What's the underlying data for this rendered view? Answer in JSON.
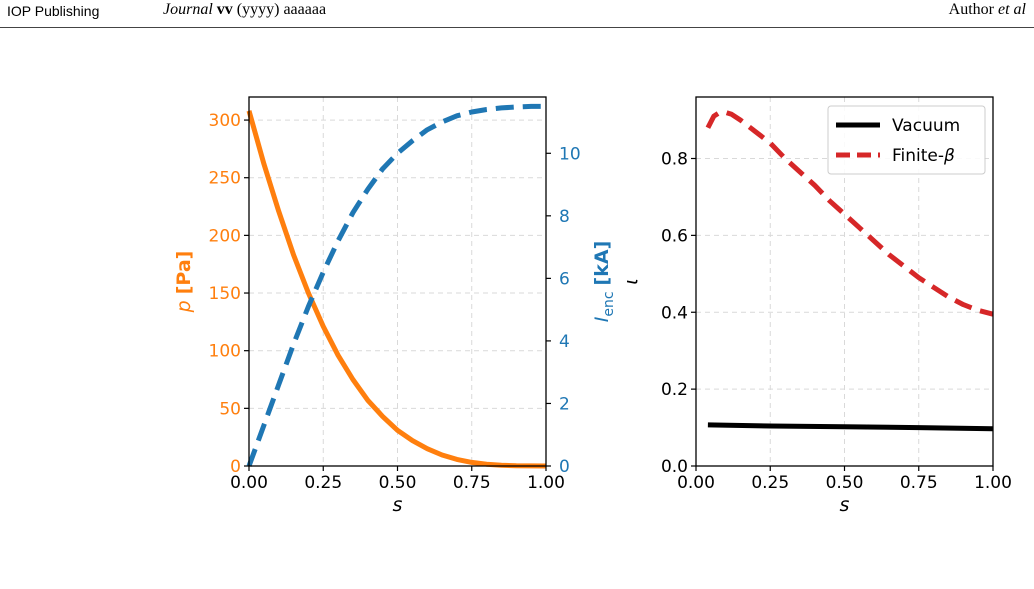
{
  "header": {
    "publisher": "IOP Publishing",
    "journal_name": "Journal",
    "journal_volume": "vv",
    "journal_rest": "(yyyy) aaaaaa",
    "author": "Author",
    "et_al": "et al"
  },
  "colors": {
    "orange": "#ff7f0e",
    "blue": "#1f77b4",
    "red": "#d62728",
    "black": "#000000",
    "grid": "#d9d9d9"
  },
  "chart_data": [
    {
      "type": "line",
      "xlabel": "s",
      "ylabel_left": {
        "symbol": "p",
        "unit": "[Pa]"
      },
      "ylabel_right": {
        "symbol": "I",
        "sub": "enc",
        "unit": "[kA]"
      },
      "xlim": [
        0,
        1
      ],
      "ylim_left": [
        0,
        320
      ],
      "ylim_right": [
        0,
        11.8
      ],
      "xticks": [
        "0.00",
        "0.25",
        "0.50",
        "0.75",
        "1.00"
      ],
      "xtick_values": [
        0,
        0.25,
        0.5,
        0.75,
        1.0
      ],
      "yticks_left": [
        "0",
        "50",
        "100",
        "150",
        "200",
        "250",
        "300"
      ],
      "ytick_values_left": [
        0,
        50,
        100,
        150,
        200,
        250,
        300
      ],
      "yticks_right": [
        "0",
        "2",
        "4",
        "6",
        "8",
        "10"
      ],
      "ytick_values_right": [
        0,
        2,
        4,
        6,
        8,
        10
      ],
      "grid": true,
      "series": [
        {
          "axis": "left",
          "style": "solid",
          "color": "#ff7f0e",
          "x": [
            0,
            0.05,
            0.1,
            0.15,
            0.2,
            0.25,
            0.3,
            0.35,
            0.4,
            0.45,
            0.5,
            0.55,
            0.6,
            0.65,
            0.7,
            0.75,
            0.8,
            0.85,
            0.9,
            0.95,
            1.0
          ],
          "y": [
            308,
            262,
            221,
            183,
            150,
            121,
            96,
            75,
            57,
            43,
            31,
            22,
            15,
            9.5,
            5.7,
            3.1,
            1.6,
            0.7,
            0.2,
            0.05,
            0
          ]
        },
        {
          "axis": "right",
          "style": "dashed",
          "color": "#1f77b4",
          "x": [
            0,
            0.05,
            0.1,
            0.15,
            0.2,
            0.25,
            0.3,
            0.35,
            0.4,
            0.45,
            0.5,
            0.55,
            0.6,
            0.65,
            0.7,
            0.75,
            0.8,
            0.85,
            0.9,
            0.95,
            1.0
          ],
          "y": [
            0,
            1.3,
            2.6,
            3.9,
            5.1,
            6.2,
            7.2,
            8.1,
            8.85,
            9.5,
            10.0,
            10.4,
            10.75,
            11.0,
            11.2,
            11.32,
            11.4,
            11.45,
            11.48,
            11.5,
            11.5
          ]
        }
      ]
    },
    {
      "type": "line",
      "xlabel": "s",
      "ylabel": "ι",
      "xlim": [
        0,
        1
      ],
      "ylim": [
        0,
        0.96
      ],
      "xticks": [
        "0.00",
        "0.25",
        "0.50",
        "0.75",
        "1.00"
      ],
      "xtick_values": [
        0,
        0.25,
        0.5,
        0.75,
        1.0
      ],
      "yticks": [
        "0.0",
        "0.2",
        "0.4",
        "0.6",
        "0.8"
      ],
      "ytick_values": [
        0,
        0.2,
        0.4,
        0.6,
        0.8
      ],
      "grid": true,
      "legend_position": "top-right",
      "series": [
        {
          "name": "Vacuum",
          "style": "solid",
          "color": "#000000",
          "x": [
            0.04,
            0.25,
            0.5,
            0.75,
            1.0
          ],
          "y": [
            0.107,
            0.104,
            0.102,
            0.1,
            0.097
          ]
        },
        {
          "name": "Finite-β",
          "style": "dashed",
          "color": "#d62728",
          "x": [
            0.04,
            0.06,
            0.08,
            0.1,
            0.12,
            0.15,
            0.2,
            0.25,
            0.3,
            0.35,
            0.4,
            0.45,
            0.5,
            0.55,
            0.6,
            0.65,
            0.7,
            0.75,
            0.8,
            0.85,
            0.9,
            0.95,
            1.0
          ],
          "y": [
            0.88,
            0.91,
            0.92,
            0.92,
            0.915,
            0.9,
            0.87,
            0.84,
            0.8,
            0.765,
            0.73,
            0.69,
            0.655,
            0.62,
            0.585,
            0.55,
            0.52,
            0.49,
            0.465,
            0.44,
            0.42,
            0.405,
            0.395
          ]
        }
      ]
    }
  ]
}
